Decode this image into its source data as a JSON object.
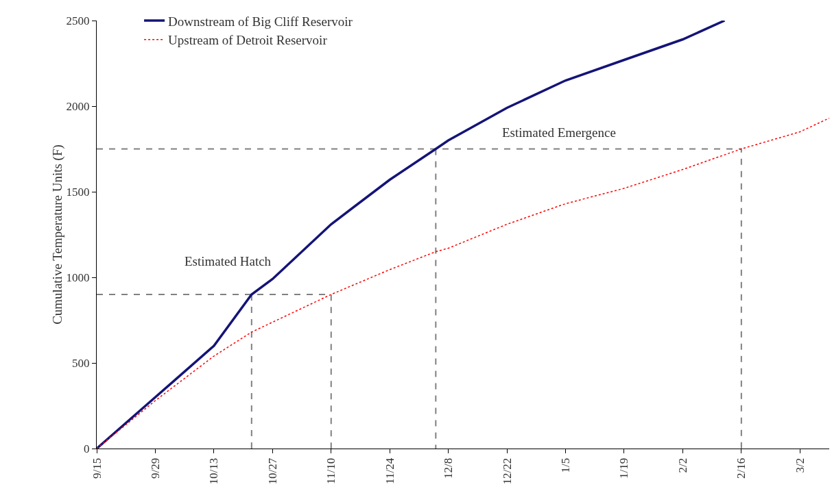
{
  "chart_data": {
    "type": "line",
    "ylabel": "Cumulative Temperature Units (F)",
    "xlim": [
      "2000-09-15",
      "2001-03-09"
    ],
    "ylim": [
      0,
      2500
    ],
    "yticks": [
      0,
      500,
      1000,
      1500,
      2000,
      2500
    ],
    "xticks": [
      {
        "value": "2000-09-15",
        "label": "9/15"
      },
      {
        "value": "2000-09-29",
        "label": "9/29"
      },
      {
        "value": "2000-10-13",
        "label": "10/13"
      },
      {
        "value": "2000-10-27",
        "label": "10/27"
      },
      {
        "value": "2000-11-10",
        "label": "11/10"
      },
      {
        "value": "2000-11-24",
        "label": "11/24"
      },
      {
        "value": "2000-12-08",
        "label": "12/8"
      },
      {
        "value": "2000-12-22",
        "label": "12/22"
      },
      {
        "value": "2001-01-05",
        "label": "1/5"
      },
      {
        "value": "2001-01-19",
        "label": "1/19"
      },
      {
        "value": "2001-02-02",
        "label": "2/2"
      },
      {
        "value": "2001-02-16",
        "label": "2/16"
      },
      {
        "value": "2001-03-02",
        "label": "3/2"
      }
    ],
    "grid": false,
    "legend": "top left",
    "marker": "none",
    "series": [
      {
        "name": "Downstream of Big Cliff Reservoir",
        "color": "#141478",
        "line_style": "solid",
        "x": [
          "2000-09-15",
          "2000-09-29",
          "2000-10-13",
          "2000-10-22",
          "2000-10-27",
          "2000-11-10",
          "2000-11-24",
          "2000-12-05",
          "2000-12-08",
          "2000-12-22",
          "2001-01-05",
          "2001-01-19",
          "2001-02-02",
          "2001-02-12"
        ],
        "values": [
          0,
          300,
          600,
          900,
          990,
          1310,
          1570,
          1750,
          1800,
          1990,
          2150,
          2270,
          2390,
          2500
        ]
      },
      {
        "name": "Upstream of Detroit Reservoir",
        "color": "#ff0000",
        "line_style": "dotted",
        "x": [
          "2000-09-15",
          "2000-09-29",
          "2000-10-13",
          "2000-10-22",
          "2000-11-10",
          "2000-11-24",
          "2000-12-05",
          "2000-12-08",
          "2000-12-22",
          "2001-01-05",
          "2001-01-19",
          "2001-02-02",
          "2001-02-16",
          "2001-03-02",
          "2001-03-09"
        ],
        "values": [
          0,
          280,
          540,
          680,
          900,
          1045,
          1150,
          1170,
          1310,
          1430,
          1520,
          1630,
          1750,
          1850,
          1930
        ]
      },
      {
        "color": "#808080",
        "line_style": "dashed",
        "x": [
          "2000-09-15",
          "2000-11-10",
          "2000-11-10"
        ],
        "values": [
          900,
          900,
          0
        ]
      },
      {
        "color": "#808080",
        "line_style": "dashed",
        "x": [
          "2000-10-22",
          "2000-10-22"
        ],
        "values": [
          900,
          0
        ]
      },
      {
        "color": "#808080",
        "line_style": "dashed",
        "x": [
          "2000-09-15",
          "2001-02-16",
          "2001-02-16"
        ],
        "values": [
          1750,
          1750,
          0
        ]
      },
      {
        "color": "#808080",
        "line_style": "dashed",
        "x": [
          "2000-12-05",
          "2000-12-05"
        ],
        "values": [
          1750,
          0
        ]
      }
    ],
    "annotations": [
      "Estimated Hatch",
      "Estimated Emergence"
    ]
  }
}
